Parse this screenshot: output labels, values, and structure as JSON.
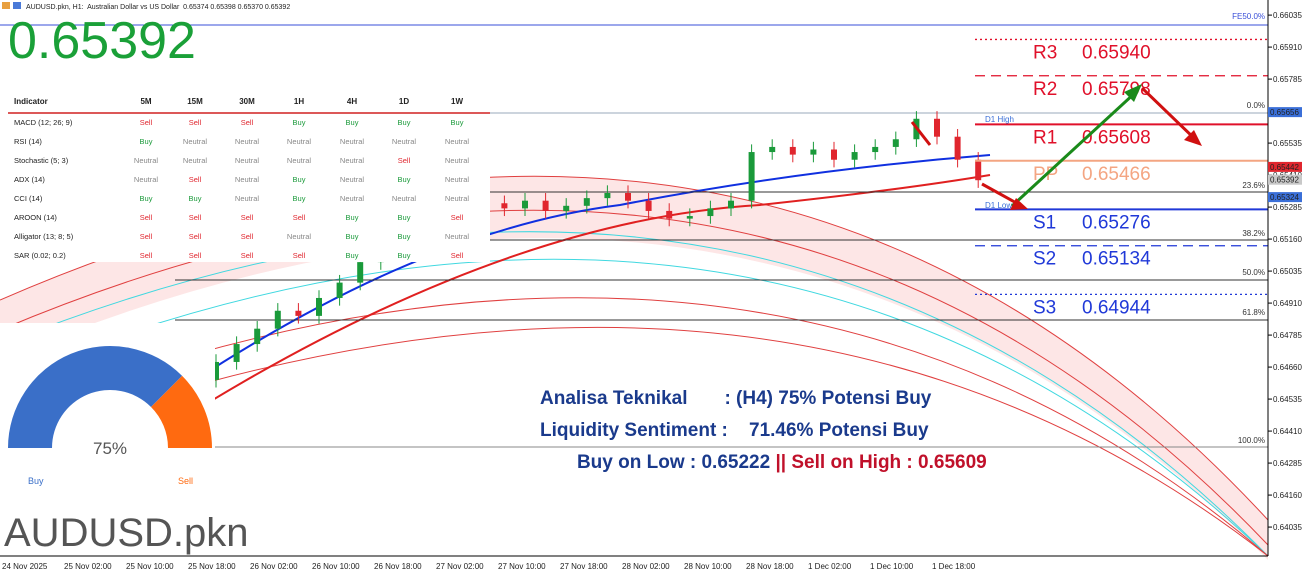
{
  "chart_data": {
    "type": "candlestick",
    "title": "AUDUSD.pkn, H1:  Australian Dollar vs US Dollar  0.65374 0.65398 0.65370 0.65392",
    "candles": [
      [
        0.6448,
        0.6453,
        0.6445,
        0.645
      ],
      [
        0.645,
        0.6455,
        0.6447,
        0.6452
      ],
      [
        0.6452,
        0.6455,
        0.6446,
        0.6449
      ],
      [
        0.6449,
        0.6456,
        0.6446,
        0.6453
      ],
      [
        0.6453,
        0.6456,
        0.6448,
        0.6451
      ],
      [
        0.6451,
        0.6458,
        0.6448,
        0.6455
      ],
      [
        0.6455,
        0.6458,
        0.6451,
        0.6454
      ],
      [
        0.6454,
        0.6461,
        0.6451,
        0.6458
      ],
      [
        0.6458,
        0.6461,
        0.6453,
        0.6456
      ],
      [
        0.6456,
        0.6464,
        0.6453,
        0.6461
      ],
      [
        0.6461,
        0.6471,
        0.6458,
        0.6468
      ],
      [
        0.6468,
        0.6478,
        0.6465,
        0.6475
      ],
      [
        0.6475,
        0.6484,
        0.6472,
        0.6481
      ],
      [
        0.6481,
        0.6491,
        0.6478,
        0.6488
      ],
      [
        0.6488,
        0.6491,
        0.6483,
        0.6486
      ],
      [
        0.6486,
        0.6496,
        0.6483,
        0.6493
      ],
      [
        0.6493,
        0.6502,
        0.649,
        0.6499
      ],
      [
        0.6499,
        0.651,
        0.6496,
        0.6507
      ],
      [
        0.6507,
        0.6517,
        0.6504,
        0.6514
      ],
      [
        0.6514,
        0.6523,
        0.6511,
        0.652
      ],
      [
        0.652,
        0.6527,
        0.6517,
        0.6524
      ],
      [
        0.6524,
        0.6531,
        0.6521,
        0.6528
      ],
      [
        0.6528,
        0.6534,
        0.6525,
        0.6531
      ],
      [
        0.6531,
        0.6534,
        0.6527,
        0.653
      ],
      [
        0.653,
        0.6533,
        0.6525,
        0.6528
      ],
      [
        0.6528,
        0.6534,
        0.6525,
        0.6531
      ],
      [
        0.6531,
        0.6534,
        0.6524,
        0.6527
      ],
      [
        0.6527,
        0.6532,
        0.6524,
        0.6529
      ],
      [
        0.6529,
        0.6535,
        0.6526,
        0.6532
      ],
      [
        0.6532,
        0.6537,
        0.6529,
        0.6534
      ],
      [
        0.6534,
        0.6537,
        0.6528,
        0.6531
      ],
      [
        0.6531,
        0.6534,
        0.6524,
        0.6527
      ],
      [
        0.6527,
        0.653,
        0.6521,
        0.6524
      ],
      [
        0.6524,
        0.6528,
        0.6521,
        0.6525
      ],
      [
        0.6525,
        0.6531,
        0.6522,
        0.6528
      ],
      [
        0.6528,
        0.6534,
        0.6525,
        0.6531
      ],
      [
        0.6531,
        0.6553,
        0.6528,
        0.655
      ],
      [
        0.655,
        0.6555,
        0.6547,
        0.6552
      ],
      [
        0.6552,
        0.6555,
        0.6546,
        0.6549
      ],
      [
        0.6549,
        0.6554,
        0.6546,
        0.6551
      ],
      [
        0.6551,
        0.6554,
        0.6544,
        0.6547
      ],
      [
        0.6547,
        0.6553,
        0.6544,
        0.655
      ],
      [
        0.655,
        0.6555,
        0.6547,
        0.6552
      ],
      [
        0.6552,
        0.6558,
        0.6549,
        0.6555
      ],
      [
        0.6555,
        0.6566,
        0.6552,
        0.6563
      ],
      [
        0.6563,
        0.6566,
        0.6553,
        0.6556
      ],
      [
        0.6556,
        0.6559,
        0.6544,
        0.6547
      ],
      [
        0.6547,
        0.655,
        0.6536,
        0.6539
      ]
    ],
    "up_color": "#1a9a3a",
    "down_color": "#e0262e",
    "ylim": [
      0.63922,
      0.66094
    ],
    "yticks": [
      {
        "value": 0.66035,
        "label": "0.66035"
      },
      {
        "value": 0.6591,
        "label": "0.65910"
      },
      {
        "value": 0.65785,
        "label": "0.65785"
      },
      {
        "value": 0.6566,
        "label": "0.65660"
      },
      {
        "value": 0.65535,
        "label": "0.65535"
      },
      {
        "value": 0.6541,
        "label": "0.65410"
      },
      {
        "value": 0.65285,
        "label": "0.65285"
      },
      {
        "value": 0.6516,
        "label": "0.65160"
      },
      {
        "value": 0.65035,
        "label": "0.65035"
      },
      {
        "value": 0.6491,
        "label": "0.64910"
      },
      {
        "value": 0.64785,
        "label": "0.64785"
      },
      {
        "value": 0.6466,
        "label": "0.64660"
      },
      {
        "value": 0.64535,
        "label": "0.64535"
      },
      {
        "value": 0.6441,
        "label": "0.64410"
      },
      {
        "value": 0.64285,
        "label": "0.64285"
      },
      {
        "value": 0.6416,
        "label": "0.64160"
      },
      {
        "value": 0.64035,
        "label": "0.64035"
      }
    ],
    "time_labels": [
      "24 Nov 2025",
      "25 Nov 02:00",
      "25 Nov 10:00",
      "25 Nov 18:00",
      "26 Nov 02:00",
      "26 Nov 10:00",
      "26 Nov 18:00",
      "27 Nov 02:00",
      "27 Nov 10:00",
      "27 Nov 18:00",
      "28 Nov 02:00",
      "28 Nov 10:00",
      "28 Nov 18:00",
      "1 Dec 02:00",
      "1 Dec 10:00",
      "1 Dec 18:00"
    ],
    "price_tags": [
      {
        "value": 0.65656,
        "label": "0.65656",
        "color": "#3a6fd8"
      },
      {
        "value": 0.65442,
        "label": "0.65442",
        "color": "#e0262e"
      },
      {
        "value": 0.65392,
        "label": "0.65392",
        "color": "#c8c8c8"
      },
      {
        "value": 0.65324,
        "label": "0.65324",
        "color": "#3a6fd8"
      }
    ]
  },
  "price": "0.65392",
  "watermark": "AUDUSD.pkn",
  "levels": [
    {
      "name": "R3",
      "value": 0.6594,
      "label": "0.65940",
      "color": "#e0102a",
      "style": "dotted"
    },
    {
      "name": "R2",
      "value": 0.65798,
      "label": "0.65798",
      "color": "#e0102a",
      "style": "dashed"
    },
    {
      "name": "R1",
      "value": 0.65608,
      "label": "0.65608",
      "color": "#e0102a",
      "style": "solid"
    },
    {
      "name": "PP",
      "value": 0.65466,
      "label": "0.65466",
      "color": "#f4a582",
      "style": "solid"
    },
    {
      "name": "S1",
      "value": 0.65276,
      "label": "0.65276",
      "color": "#2039d8",
      "style": "solid"
    },
    {
      "name": "S2",
      "value": 0.65134,
      "label": "0.65134",
      "color": "#2039d8",
      "style": "dashed"
    },
    {
      "name": "S3",
      "value": 0.64944,
      "label": "0.64944",
      "color": "#2039d8",
      "style": "dotted"
    }
  ],
  "fib_labels": [
    "FE50.0%",
    "0.0%",
    "23.6%",
    "38.2%",
    "50.0%",
    "61.8%",
    "100.0%"
  ],
  "d1_labels": [
    "D1 High",
    "D1 Low"
  ],
  "table": {
    "header": [
      "Indicator",
      "5M",
      "15M",
      "30M",
      "1H",
      "4H",
      "1D",
      "1W"
    ],
    "rows": [
      [
        "MACD (12; 26; 9)",
        "Sell",
        "Sell",
        "Sell",
        "Buy",
        "Buy",
        "Buy",
        "Buy"
      ],
      [
        "RSI (14)",
        "Buy",
        "Neutral",
        "Neutral",
        "Neutral",
        "Neutral",
        "Neutral",
        "Neutral"
      ],
      [
        "Stochastic (5; 3)",
        "Neutral",
        "Neutral",
        "Neutral",
        "Neutral",
        "Neutral",
        "Sell",
        "Neutral"
      ],
      [
        "ADX (14)",
        "Neutral",
        "Sell",
        "Neutral",
        "Buy",
        "Neutral",
        "Buy",
        "Neutral"
      ],
      [
        "CCI (14)",
        "Buy",
        "Buy",
        "Neutral",
        "Buy",
        "Neutral",
        "Neutral",
        "Neutral"
      ],
      [
        "AROON (14)",
        "Sell",
        "Sell",
        "Sell",
        "Sell",
        "Buy",
        "Buy",
        "Sell"
      ],
      [
        "Alligator (13; 8; 5)",
        "Sell",
        "Sell",
        "Sell",
        "Neutral",
        "Buy",
        "Buy",
        "Neutral"
      ],
      [
        "SAR (0.02; 0.2)",
        "Sell",
        "Sell",
        "Sell",
        "Sell",
        "Buy",
        "Buy",
        "Sell"
      ]
    ]
  },
  "gauge": {
    "value": 75,
    "value_label": "75%",
    "buy": "Buy",
    "sell": "Sell",
    "buy_color": "#3a6fc8",
    "sell_color": "#ff6a10"
  },
  "analysis": {
    "line1": "Analisa Teknikal       : (H4) 75% Potensi Buy",
    "line2": "Liquidity Sentiment :    71.46% Potensi Buy",
    "line3a": "Buy on Low : 0.65222 ",
    "line3b": "||",
    "line3c": " Sell on High : 0.65609"
  }
}
